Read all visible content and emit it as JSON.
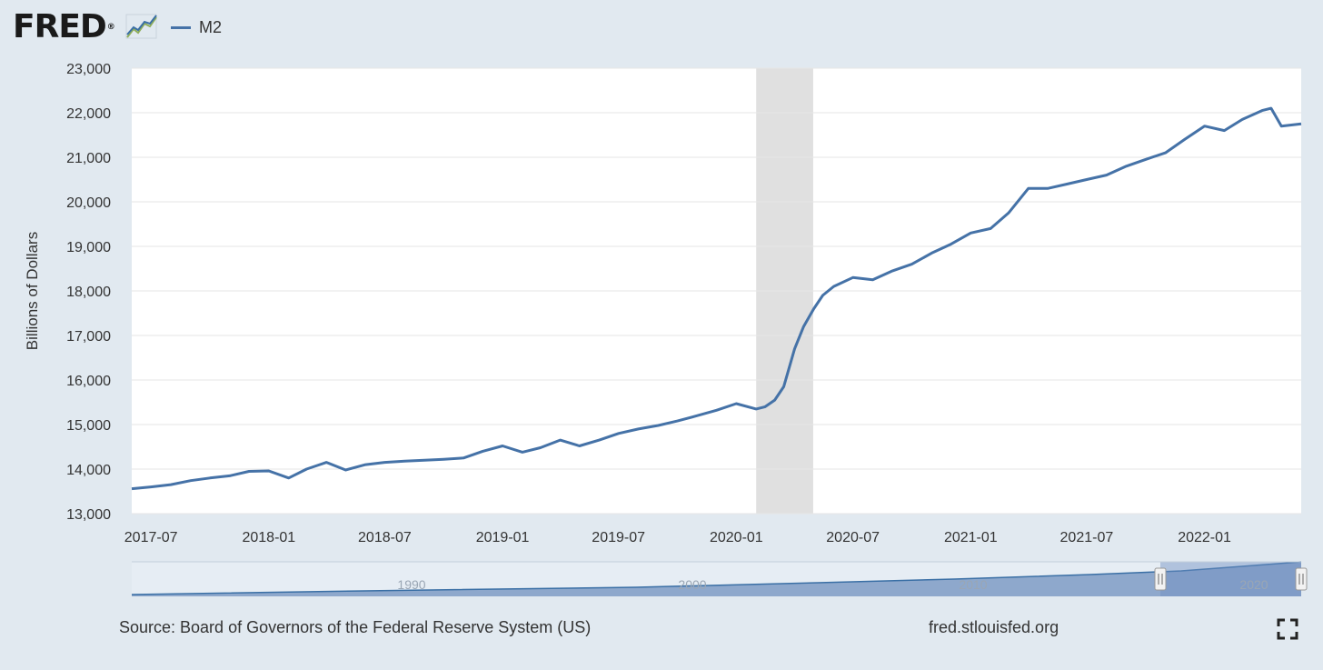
{
  "header": {
    "logo_text": "FRED",
    "logo_mark": "®",
    "graph_icon": "line-graph-icon"
  },
  "chart_data": {
    "type": "line",
    "title": "",
    "xlabel": "",
    "ylabel": "Billions of Dollars",
    "ylim": [
      13000,
      23000
    ],
    "yticks": [
      "13,000",
      "14,000",
      "15,000",
      "16,000",
      "17,000",
      "18,000",
      "19,000",
      "20,000",
      "21,000",
      "22,000",
      "23,000"
    ],
    "xticks": [
      "2017-07",
      "2018-01",
      "2018-07",
      "2019-01",
      "2019-07",
      "2020-01",
      "2020-07",
      "2021-01",
      "2021-07",
      "2022-01"
    ],
    "recession_band": [
      "2020-02-01",
      "2020-04-30"
    ],
    "grid": "horizontal",
    "legend": "top-left",
    "series": [
      {
        "name": "M2",
        "color": "#4572a7",
        "x": [
          "2017-06-01",
          "2017-07-01",
          "2017-08-01",
          "2017-09-01",
          "2017-10-01",
          "2017-11-01",
          "2017-12-01",
          "2018-01-01",
          "2018-02-01",
          "2018-03-01",
          "2018-04-01",
          "2018-05-01",
          "2018-06-01",
          "2018-07-01",
          "2018-08-01",
          "2018-09-01",
          "2018-10-01",
          "2018-11-01",
          "2018-12-01",
          "2019-01-01",
          "2019-02-01",
          "2019-03-01",
          "2019-04-01",
          "2019-05-01",
          "2019-06-01",
          "2019-07-01",
          "2019-08-01",
          "2019-09-01",
          "2019-10-01",
          "2019-11-01",
          "2019-12-01",
          "2020-01-01",
          "2020-02-01",
          "2020-02-15",
          "2020-03-01",
          "2020-03-15",
          "2020-04-01",
          "2020-04-15",
          "2020-05-01",
          "2020-05-15",
          "2020-06-01",
          "2020-07-01",
          "2020-08-01",
          "2020-09-01",
          "2020-10-01",
          "2020-11-01",
          "2020-12-01",
          "2021-01-01",
          "2021-02-01",
          "2021-03-01",
          "2021-04-01",
          "2021-05-01",
          "2021-06-01",
          "2021-07-01",
          "2021-08-01",
          "2021-09-01",
          "2021-10-01",
          "2021-11-01",
          "2021-12-01",
          "2022-01-01",
          "2022-02-01",
          "2022-03-01",
          "2022-04-01",
          "2022-04-15",
          "2022-05-01",
          "2022-06-01"
        ],
        "values": [
          13560,
          13600,
          13650,
          13740,
          13800,
          13850,
          13950,
          13960,
          13800,
          14000,
          14150,
          13980,
          14100,
          14150,
          14180,
          14200,
          14220,
          14250,
          14400,
          14520,
          14380,
          14480,
          14650,
          14520,
          14650,
          14800,
          14900,
          14980,
          15080,
          15200,
          15320,
          15470,
          15350,
          15400,
          15550,
          15850,
          16700,
          17200,
          17600,
          17900,
          18100,
          18300,
          18250,
          18450,
          18600,
          18850,
          19050,
          19300,
          19400,
          19750,
          20300,
          20300,
          20400,
          20500,
          20600,
          20800,
          20950,
          21100,
          21400,
          21700,
          21600,
          21850,
          22050,
          22100,
          21700,
          21750
        ]
      }
    ]
  },
  "navigator": {
    "years": [
      "1990",
      "2000",
      "2010",
      "2020"
    ]
  },
  "footer": {
    "source": "Source: Board of Governors of the Federal Reserve System (US)",
    "url": "fred.stlouisfed.org",
    "fullscreen_icon": "fullscreen-icon"
  }
}
